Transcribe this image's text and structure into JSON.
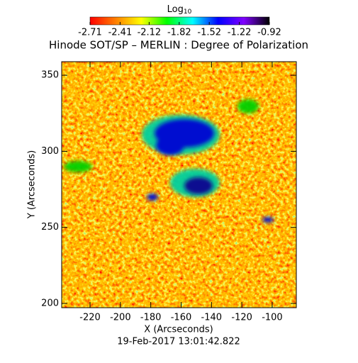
{
  "chart_data": {
    "type": "heatmap",
    "title": "Hinode SOT/SP – MERLIN : Degree of Polarization",
    "colorbar_title": {
      "text": "Log",
      "subscript": "10"
    },
    "colorbar_ticks": [
      -2.71,
      -2.41,
      -2.12,
      -1.82,
      -1.52,
      -1.22,
      -0.92
    ],
    "clim": [
      -2.71,
      -0.92
    ],
    "colormap": [
      "#ff0000",
      "#ff7f00",
      "#ffff00",
      "#00ff00",
      "#00ffff",
      "#0000ff",
      "#7f00ff",
      "#000000"
    ],
    "x_label": "X (Arcseconds)",
    "y_label": "Y (Arcseconds)",
    "xlim": [
      -238.7,
      -84.1
    ],
    "xticks": [
      -220,
      -200,
      -180,
      -160,
      -140,
      -120,
      -100
    ],
    "ylim": [
      197.2,
      358.9
    ],
    "yticks": [
      200,
      250,
      300,
      350
    ],
    "footer": "19-Feb-2017 13:01:42.822"
  }
}
